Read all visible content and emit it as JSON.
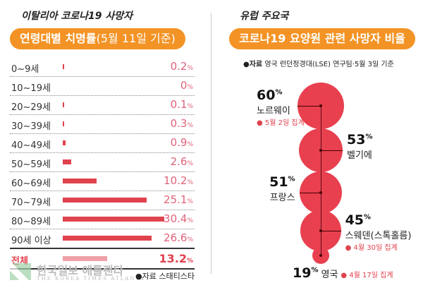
{
  "left": {
    "kicker": "이탈리아 코로나19 사망자",
    "pill_bold": "연령대별 치명률",
    "pill_light": "(5월 11일 기준)",
    "source": "●자료 스태티스타",
    "logo": {
      "ko": "한국일보 애틀랜타",
      "en": "THE KOREA TIMES ATLANTA"
    }
  },
  "right": {
    "kicker": "유럽 주요국",
    "pill": "코로나19 요양원 관련 사망자 비율",
    "source_bold": "●자료",
    "source_text": "영국 런던정경대(LSE) 연구팀·5월 3일 기준"
  },
  "chart_data": [
    {
      "type": "bar",
      "orientation": "horizontal",
      "categories": [
        "0~9세",
        "10~19세",
        "20~29세",
        "30~39세",
        "40~49세",
        "50~59세",
        "60~69세",
        "70~79세",
        "80~89세",
        "90세 이상",
        "전체"
      ],
      "values": [
        0.2,
        0,
        0.1,
        0.3,
        0.9,
        2.6,
        10.2,
        25.1,
        30.4,
        26.6,
        13.2
      ],
      "labels": [
        "0.2",
        "0",
        "0.1",
        "0.3",
        "0.9",
        "2.6",
        "10.2",
        "25.1",
        "30.4",
        "26.6",
        "13.2"
      ],
      "unit": "%",
      "colors": {
        "bar": "#e0424e",
        "total": "#f0a0a8"
      }
    },
    {
      "type": "bubble",
      "items": [
        {
          "country": "노르웨이",
          "value": 60,
          "note": "● 5월 2일 집계"
        },
        {
          "country": "벨기에",
          "value": 53,
          "note": ""
        },
        {
          "country": "프랑스",
          "value": 51,
          "note": ""
        },
        {
          "country": "스웨덴(스톡홀름)",
          "value": 45,
          "note": "● 4월 30일 집계"
        },
        {
          "country": "영국",
          "value": 19,
          "note": "● 4월 17일 집계"
        }
      ],
      "unit": "%",
      "color": "#e8404f"
    }
  ]
}
